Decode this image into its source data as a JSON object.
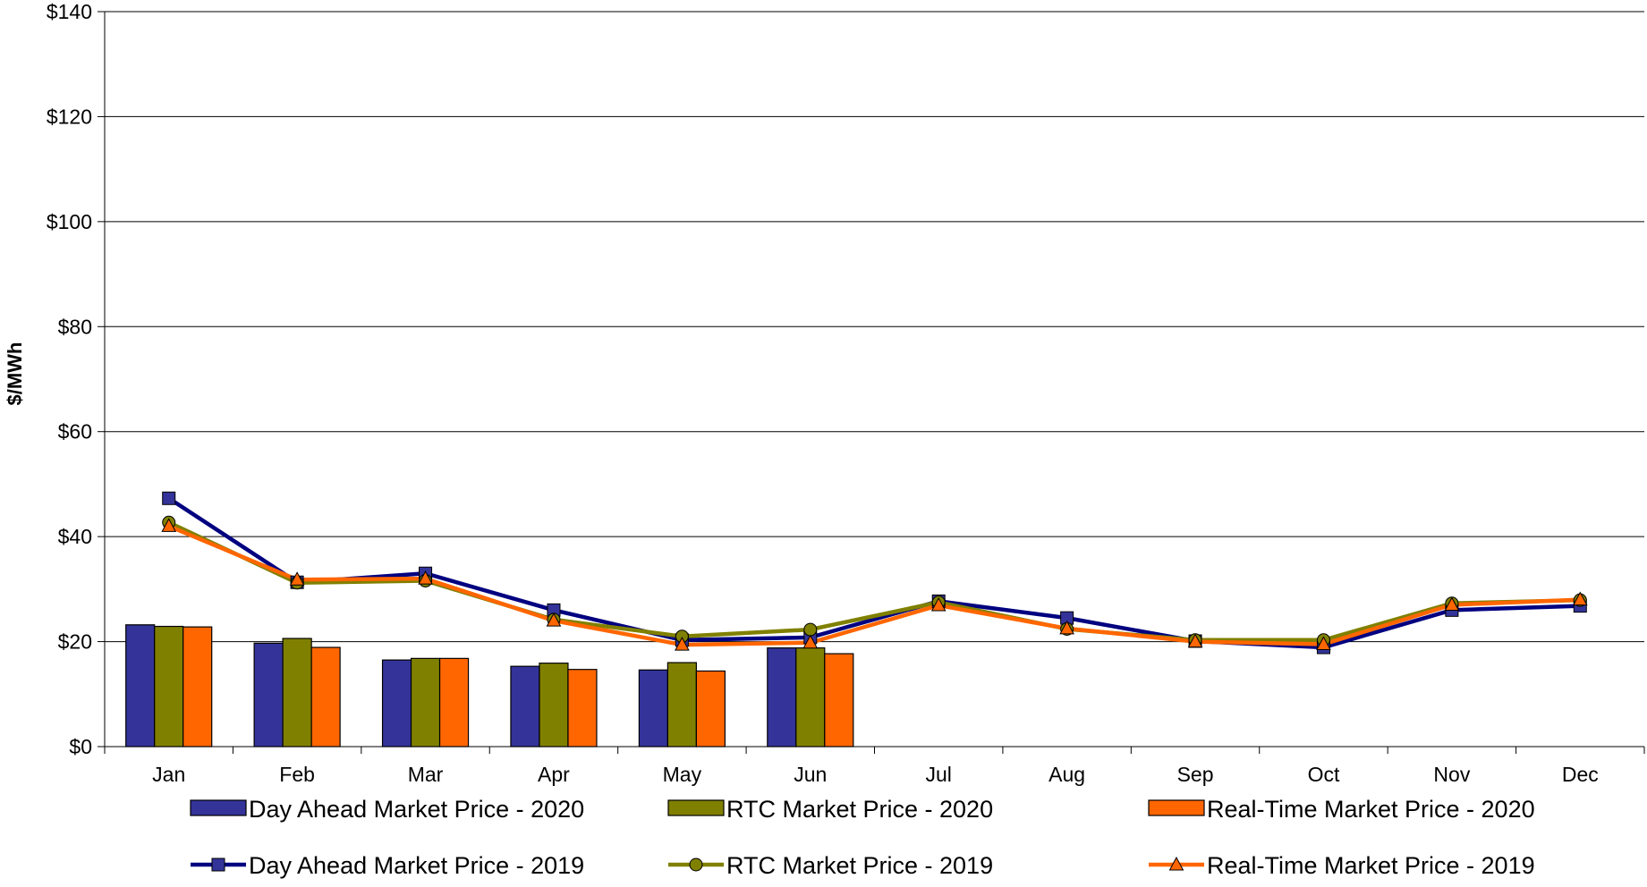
{
  "chart_data": {
    "type": "bar",
    "title": "",
    "xlabel": "",
    "ylabel": "$/MWh",
    "ylim": [
      0,
      140
    ],
    "ytick_values": [
      0,
      20,
      40,
      60,
      80,
      100,
      120,
      140
    ],
    "ytick_labels": [
      "$0",
      "$20",
      "$40",
      "$60",
      "$80",
      "$100",
      "$120",
      "$140"
    ],
    "categories": [
      "Jan",
      "Feb",
      "Mar",
      "Apr",
      "May",
      "Jun",
      "Jul",
      "Aug",
      "Sep",
      "Oct",
      "Nov",
      "Dec"
    ],
    "grid": "horizontal",
    "legend_position": "bottom",
    "bar_series": [
      {
        "name": "Day Ahead Market Price - 2020",
        "color": "#333399",
        "values": [
          23.2,
          19.7,
          16.5,
          15.3,
          14.6,
          18.8
        ]
      },
      {
        "name": "RTC Market Price - 2020",
        "color": "#808000",
        "values": [
          22.9,
          20.6,
          16.8,
          15.9,
          16.0,
          18.8
        ]
      },
      {
        "name": "Real-Time Market Price - 2020",
        "color": "#FF6600",
        "values": [
          22.8,
          18.9,
          16.8,
          14.7,
          14.4,
          17.7
        ]
      }
    ],
    "line_series": [
      {
        "name": "Day Ahead Market Price - 2019",
        "color": "#000080",
        "marker": "square",
        "marker_color": "#333399",
        "values": [
          47.3,
          31.3,
          33.0,
          26.0,
          20.3,
          20.8,
          27.7,
          24.5,
          20.1,
          18.9,
          26.0,
          26.8
        ]
      },
      {
        "name": "RTC Market Price - 2019",
        "color": "#808000",
        "marker": "circle",
        "marker_color": "#808000",
        "values": [
          42.7,
          31.2,
          31.6,
          24.2,
          21.0,
          22.3,
          27.5,
          22.4,
          20.3,
          20.3,
          27.3,
          27.9
        ]
      },
      {
        "name": "Real-Time Market Price - 2019",
        "color": "#FF6600",
        "marker": "triangle",
        "marker_color": "#FF6600",
        "values": [
          42.0,
          31.8,
          32.0,
          24.0,
          19.4,
          19.8,
          26.9,
          22.5,
          20.0,
          19.5,
          27.0,
          28.0
        ]
      }
    ]
  }
}
